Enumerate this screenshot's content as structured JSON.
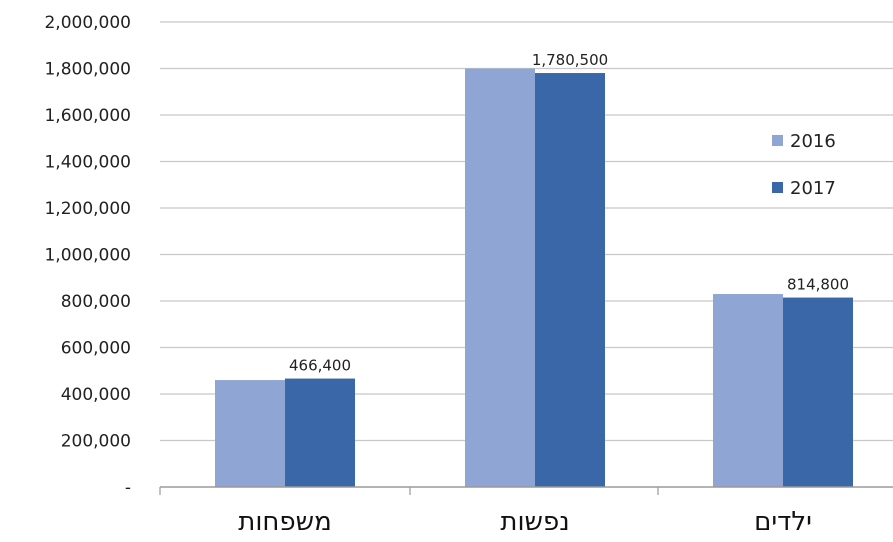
{
  "chart_data": {
    "type": "bar",
    "categories": [
      "משפחות",
      "נפשות",
      "ילדים"
    ],
    "series": [
      {
        "name": "2016",
        "color": "#8fa5d4",
        "values": [
          460000,
          1800000,
          830000
        ]
      },
      {
        "name": "2017",
        "color": "#3a67a8",
        "values": [
          466400,
          1780500,
          814800
        ]
      }
    ],
    "data_labels": [
      "466,400",
      "1,780,500",
      "814,800"
    ],
    "ylim": [
      0,
      2000000
    ],
    "yticks": [
      0,
      200000,
      400000,
      600000,
      800000,
      1000000,
      1200000,
      1400000,
      1600000,
      1800000,
      2000000
    ],
    "ytick_labels": [
      "-",
      "200,000",
      "400,000",
      "600,000",
      "800,000",
      "1,000,000",
      "1,200,000",
      "1,400,000",
      "1,600,000",
      "1,800,000",
      "2,000,000"
    ],
    "grid": true,
    "legend": "right"
  }
}
